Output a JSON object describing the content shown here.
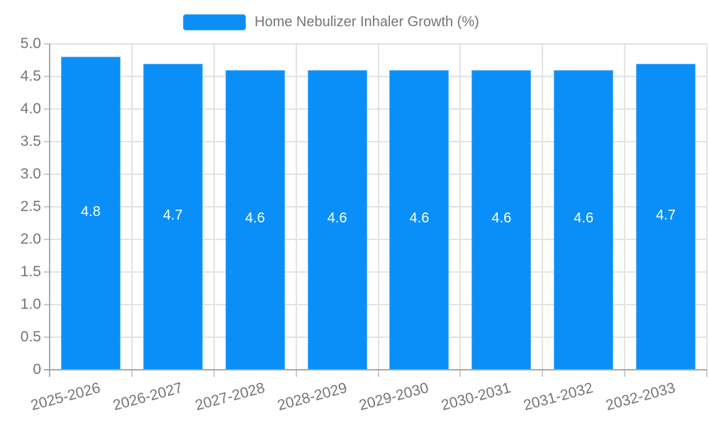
{
  "legend": {
    "label": "Home Nebulizer Inhaler Growth (%)"
  },
  "colors": {
    "bar": "#0a8ff8",
    "bar_border": "#5cb5fa",
    "grid": "#e3e3e3",
    "axis": "#aaaaaa",
    "tick": "#cccccc",
    "tick_label": "#757575",
    "bar_label": "#ffffff"
  },
  "chart_data": {
    "type": "bar",
    "title": "",
    "xlabel": "",
    "ylabel": "",
    "categories": [
      "2025-2026",
      "2026-2027",
      "2027-2028",
      "2028-2029",
      "2029-2030",
      "2030-2031",
      "2031-2032",
      "2032-2033"
    ],
    "series": [
      {
        "name": "Home Nebulizer Inhaler Growth (%)",
        "values": [
          4.8,
          4.7,
          4.6,
          4.6,
          4.6,
          4.6,
          4.6,
          4.7
        ],
        "labels": [
          "4.8",
          "4.7",
          "4.6",
          "4.6",
          "4.6",
          "4.6",
          "4.6",
          "4.7"
        ]
      }
    ],
    "ylim": [
      0,
      5
    ],
    "ytick_step": 0.5,
    "ytick_labels": [
      "0",
      "0.5",
      "1.0",
      "1.5",
      "2.0",
      "2.5",
      "3.0",
      "3.5",
      "4.0",
      "4.5",
      "5.0"
    ],
    "grid": true,
    "legend_position": "top-center",
    "xlabel_rotation_deg": -15
  }
}
